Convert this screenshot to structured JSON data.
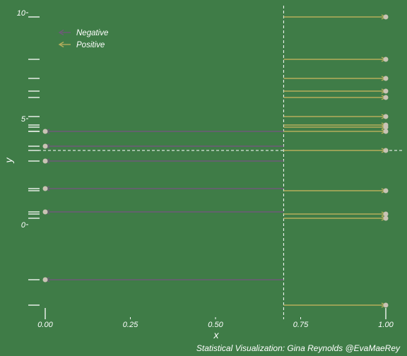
{
  "chart_data": {
    "type": "scatter",
    "title": "",
    "xlabel": "x",
    "ylabel": "y",
    "caption": "Statistical Visualization: Gina Reynolds @EvaMaeRey",
    "xlim": [
      0,
      1
    ],
    "ylim": [
      -3.9,
      10.2
    ],
    "x_ticks": [
      "0.00",
      "0.25",
      "0.50",
      "0.75",
      "1.00"
    ],
    "y_ticks": [
      "0",
      "5",
      "10"
    ],
    "threshold_x": 0.7,
    "mean_y": 3.5,
    "grid": false,
    "legend_position": "top-left",
    "legend": [
      {
        "label": "Negative",
        "color": "#6e5a78"
      },
      {
        "label": "Positive",
        "color": "#b5ad5c"
      }
    ],
    "colors": {
      "background": "#3f7c47",
      "negative": "#6e5a78",
      "positive": "#b5ad5c",
      "point": "#c9c3b4",
      "rug": "#ffffff",
      "reference_line": "#ffffff"
    },
    "series": [
      {
        "name": "Negative",
        "x": 0,
        "y": [
          4.4,
          3.7,
          3.0,
          1.7,
          0.6,
          -2.6
        ]
      },
      {
        "name": "Positive",
        "x": 1,
        "y": [
          9.8,
          7.8,
          6.9,
          6.3,
          6.0,
          5.1,
          4.7,
          4.6,
          4.4,
          3.5,
          1.6,
          0.5,
          0.3,
          -3.8
        ]
      }
    ]
  }
}
